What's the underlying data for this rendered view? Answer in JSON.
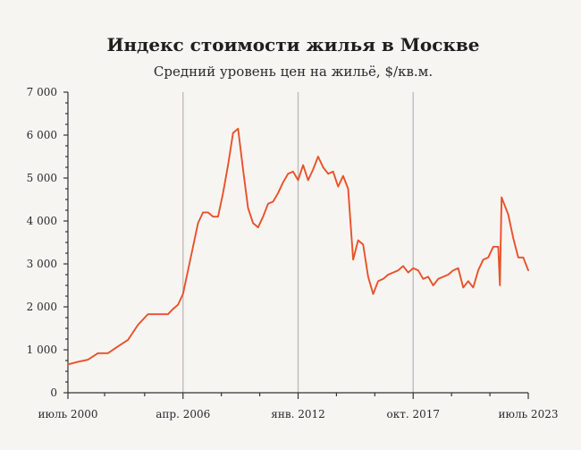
{
  "chart_data": {
    "type": "line",
    "title": "Индекс стоимости жилья в Москве",
    "subtitle": "Средний уровень цен на жильё, $/кв.м.",
    "xlabel": "",
    "ylabel": "",
    "x_range": [
      "2000-07",
      "2023-07"
    ],
    "ylim": [
      0,
      7000
    ],
    "y_ticks": [
      0,
      1000,
      2000,
      3000,
      4000,
      5000,
      6000,
      7000
    ],
    "y_tick_labels": [
      "0",
      "1 000",
      "2 000",
      "3 000",
      "4 000",
      "5 000",
      "6 000",
      "7 000"
    ],
    "x_tick_labels": [
      {
        "x": "2000-07",
        "label": "июль 2000"
      },
      {
        "x": "2006-04",
        "label": "апр. 2006"
      },
      {
        "x": "2012-01",
        "label": "янв. 2012"
      },
      {
        "x": "2017-10",
        "label": "окт. 2017"
      },
      {
        "x": "2023-07",
        "label": "июль 2023"
      }
    ],
    "x_minor_ticks": [
      "2002-05",
      "2004-05",
      "2008-03",
      "2010-02",
      "2013-12",
      "2015-11",
      "2019-09",
      "2021-08"
    ],
    "grid": {
      "vertical": true,
      "horizontal": false
    },
    "line_color": "#e8512a",
    "series": [
      {
        "name": "",
        "x": [
          "2000-07",
          "2001-01",
          "2001-07",
          "2002-01",
          "2002-07",
          "2003-01",
          "2003-07",
          "2004-01",
          "2004-07",
          "2005-01",
          "2005-07",
          "2005-10",
          "2006-01",
          "2006-04",
          "2006-07",
          "2006-10",
          "2007-01",
          "2007-04",
          "2007-07",
          "2007-10",
          "2008-01",
          "2008-04",
          "2008-07",
          "2008-10",
          "2009-01",
          "2009-04",
          "2009-07",
          "2009-10",
          "2010-01",
          "2010-04",
          "2010-07",
          "2010-10",
          "2011-01",
          "2011-04",
          "2011-07",
          "2011-10",
          "2012-01",
          "2012-04",
          "2012-07",
          "2012-10",
          "2013-01",
          "2013-04",
          "2013-07",
          "2013-10",
          "2014-01",
          "2014-04",
          "2014-07",
          "2014-10",
          "2015-01",
          "2015-04",
          "2015-07",
          "2015-10",
          "2016-01",
          "2016-04",
          "2016-07",
          "2016-10",
          "2017-01",
          "2017-04",
          "2017-07",
          "2017-10",
          "2018-01",
          "2018-04",
          "2018-07",
          "2018-10",
          "2019-01",
          "2019-04",
          "2019-07",
          "2019-10",
          "2020-01",
          "2020-04",
          "2020-07",
          "2020-10",
          "2021-01",
          "2021-04",
          "2021-07",
          "2021-10",
          "2022-01",
          "2022-02",
          "2022-03",
          "2022-07",
          "2022-10",
          "2023-01",
          "2023-04",
          "2023-07"
        ],
        "values": [
          660,
          720,
          770,
          920,
          920,
          1080,
          1230,
          1580,
          1830,
          1830,
          1830,
          1950,
          2050,
          2300,
          2850,
          3400,
          3950,
          4200,
          4200,
          4100,
          4100,
          4650,
          5300,
          6050,
          6150,
          5200,
          4300,
          3950,
          3850,
          4100,
          4400,
          4450,
          4650,
          4900,
          5100,
          5150,
          4950,
          5300,
          4950,
          5200,
          5500,
          5250,
          5100,
          5150,
          4800,
          5050,
          4750,
          3100,
          3550,
          3450,
          2700,
          2300,
          2600,
          2650,
          2750,
          2800,
          2850,
          2950,
          2800,
          2900,
          2850,
          2650,
          2700,
          2500,
          2650,
          2700,
          2750,
          2850,
          2900,
          2450,
          2600,
          2450,
          2850,
          3100,
          3150,
          3400,
          3400,
          2500,
          4550,
          4150,
          3600,
          3150,
          3150,
          2850
        ]
      }
    ]
  }
}
